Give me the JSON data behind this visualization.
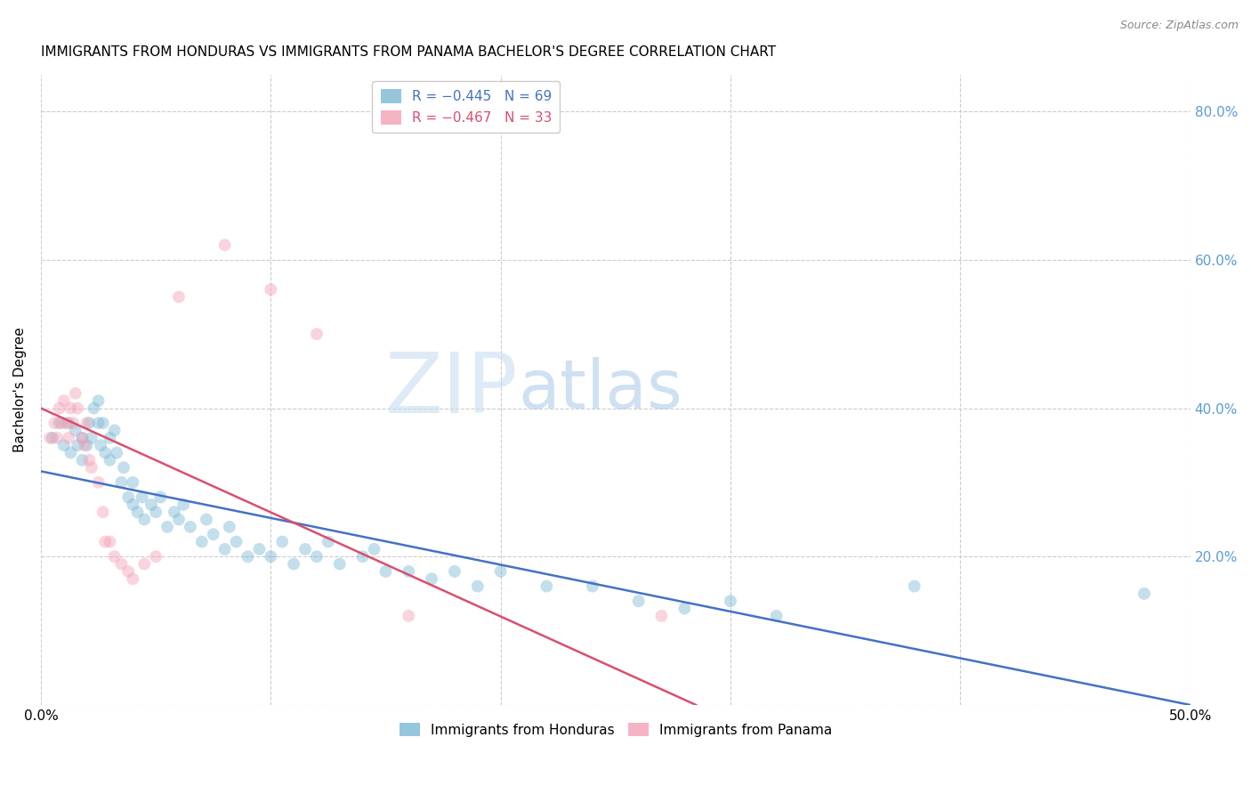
{
  "title": "IMMIGRANTS FROM HONDURAS VS IMMIGRANTS FROM PANAMA BACHELOR'S DEGREE CORRELATION CHART",
  "source_text": "Source: ZipAtlas.com",
  "ylabel": "Bachelor's Degree",
  "xlim": [
    0.0,
    0.5
  ],
  "ylim": [
    0.0,
    0.85
  ],
  "legend_label_blue": "Immigrants from Honduras",
  "legend_label_pink": "Immigrants from Panama",
  "marker_size": 100,
  "marker_alpha": 0.45,
  "blue_color": "#7bb8d4",
  "pink_color": "#f4a0b5",
  "blue_line_color": "#4472c4",
  "pink_line_color": "#d94f6e",
  "grid_color": "#cccccc",
  "title_fontsize": 11,
  "axis_label_fontsize": 11,
  "tick_fontsize": 11,
  "right_tick_color": "#5b9bd5",
  "blue_scatter_x": [
    0.005,
    0.008,
    0.01,
    0.012,
    0.013,
    0.015,
    0.016,
    0.018,
    0.018,
    0.02,
    0.021,
    0.022,
    0.023,
    0.025,
    0.025,
    0.026,
    0.027,
    0.028,
    0.03,
    0.03,
    0.032,
    0.033,
    0.035,
    0.036,
    0.038,
    0.04,
    0.04,
    0.042,
    0.044,
    0.045,
    0.048,
    0.05,
    0.052,
    0.055,
    0.058,
    0.06,
    0.062,
    0.065,
    0.07,
    0.072,
    0.075,
    0.08,
    0.082,
    0.085,
    0.09,
    0.095,
    0.1,
    0.105,
    0.11,
    0.115,
    0.12,
    0.125,
    0.13,
    0.14,
    0.145,
    0.15,
    0.16,
    0.17,
    0.18,
    0.19,
    0.2,
    0.22,
    0.24,
    0.26,
    0.28,
    0.3,
    0.32,
    0.38,
    0.48
  ],
  "blue_scatter_y": [
    0.36,
    0.38,
    0.35,
    0.38,
    0.34,
    0.37,
    0.35,
    0.33,
    0.36,
    0.35,
    0.38,
    0.36,
    0.4,
    0.38,
    0.41,
    0.35,
    0.38,
    0.34,
    0.33,
    0.36,
    0.37,
    0.34,
    0.3,
    0.32,
    0.28,
    0.27,
    0.3,
    0.26,
    0.28,
    0.25,
    0.27,
    0.26,
    0.28,
    0.24,
    0.26,
    0.25,
    0.27,
    0.24,
    0.22,
    0.25,
    0.23,
    0.21,
    0.24,
    0.22,
    0.2,
    0.21,
    0.2,
    0.22,
    0.19,
    0.21,
    0.2,
    0.22,
    0.19,
    0.2,
    0.21,
    0.18,
    0.18,
    0.17,
    0.18,
    0.16,
    0.18,
    0.16,
    0.16,
    0.14,
    0.13,
    0.14,
    0.12,
    0.16,
    0.15
  ],
  "pink_scatter_x": [
    0.004,
    0.006,
    0.007,
    0.008,
    0.009,
    0.01,
    0.011,
    0.012,
    0.013,
    0.014,
    0.015,
    0.016,
    0.018,
    0.019,
    0.02,
    0.021,
    0.022,
    0.025,
    0.027,
    0.028,
    0.03,
    0.032,
    0.035,
    0.038,
    0.04,
    0.045,
    0.05,
    0.06,
    0.08,
    0.1,
    0.12,
    0.16,
    0.27
  ],
  "pink_scatter_y": [
    0.36,
    0.38,
    0.36,
    0.4,
    0.38,
    0.41,
    0.38,
    0.36,
    0.4,
    0.38,
    0.42,
    0.4,
    0.36,
    0.35,
    0.38,
    0.33,
    0.32,
    0.3,
    0.26,
    0.22,
    0.22,
    0.2,
    0.19,
    0.18,
    0.17,
    0.19,
    0.2,
    0.55,
    0.62,
    0.56,
    0.5,
    0.12,
    0.12
  ],
  "blue_line_x0": 0.0,
  "blue_line_x1": 0.5,
  "blue_line_y0": 0.315,
  "blue_line_y1": 0.0,
  "pink_line_x0": 0.0,
  "pink_line_x1": 0.285,
  "pink_line_y0": 0.4,
  "pink_line_y1": 0.0
}
